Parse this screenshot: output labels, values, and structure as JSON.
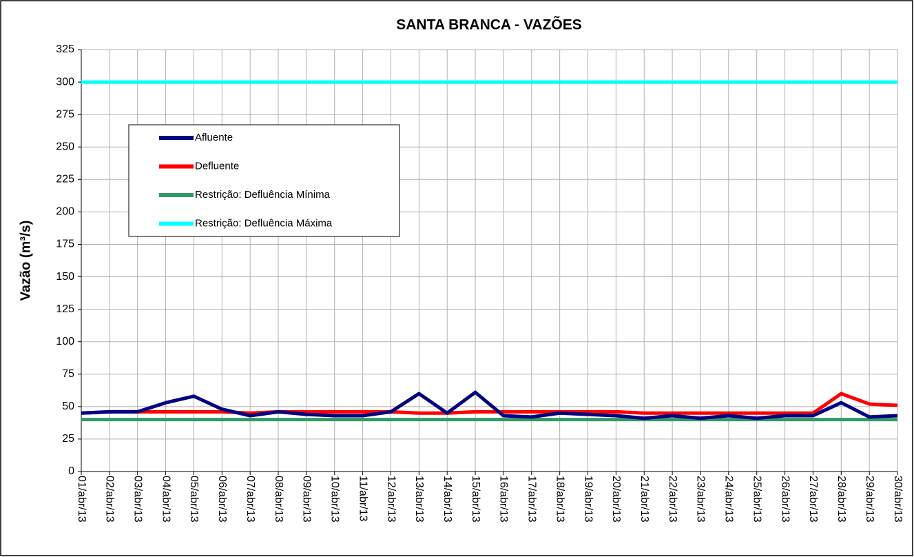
{
  "chart_data": {
    "type": "line",
    "title": "SANTA BRANCA - VAZÕES",
    "y_label": "Vazão (m³/s)",
    "categories": [
      "01/abr/13",
      "02/abr/13",
      "03/abr/13",
      "04/abr/13",
      "05/abr/13",
      "06/abr/13",
      "07/abr/13",
      "08/abr/13",
      "09/abr/13",
      "10/abr/13",
      "11/abr/13",
      "12/abr/13",
      "13/abr/13",
      "14/abr/13",
      "15/abr/13",
      "16/abr/13",
      "17/abr/13",
      "18/abr/13",
      "19/abr/13",
      "20/abr/13",
      "21/abr/13",
      "22/abr/13",
      "23/abr/13",
      "24/abr/13",
      "25/abr/13",
      "26/abr/13",
      "27/abr/13",
      "28/abr/13",
      "29/abr/13",
      "30/abr/13"
    ],
    "series": [
      {
        "name": "Afluente",
        "color": "#000080",
        "values": [
          45,
          46,
          46,
          53,
          58,
          48,
          43,
          46,
          44,
          43,
          43,
          46,
          60,
          45,
          61,
          43,
          42,
          45,
          44,
          43,
          41,
          43,
          41,
          43,
          41,
          43,
          43,
          53,
          42,
          43
        ]
      },
      {
        "name": "Defluente",
        "color": "#ff0000",
        "values": [
          45,
          46,
          46,
          46,
          46,
          46,
          45,
          46,
          46,
          46,
          46,
          46,
          45,
          45,
          46,
          46,
          46,
          46,
          46,
          46,
          45,
          45,
          45,
          45,
          45,
          45,
          45,
          60,
          52,
          51
        ]
      },
      {
        "name": "Restrição: Defluência Mínima",
        "color": "#339966",
        "values": [
          40,
          40,
          40,
          40,
          40,
          40,
          40,
          40,
          40,
          40,
          40,
          40,
          40,
          40,
          40,
          40,
          40,
          40,
          40,
          40,
          40,
          40,
          40,
          40,
          40,
          40,
          40,
          40,
          40,
          40
        ]
      },
      {
        "name": "Restrição: Defluência Máxima",
        "color": "#00ffff",
        "values": [
          300,
          300,
          300,
          300,
          300,
          300,
          300,
          300,
          300,
          300,
          300,
          300,
          300,
          300,
          300,
          300,
          300,
          300,
          300,
          300,
          300,
          300,
          300,
          300,
          300,
          300,
          300,
          300,
          300,
          300
        ]
      }
    ],
    "ylim": [
      0,
      325
    ],
    "yticks": [
      0,
      25,
      50,
      75,
      100,
      125,
      150,
      175,
      200,
      225,
      250,
      275,
      300,
      325
    ],
    "grid": true,
    "legend": "upper left"
  }
}
